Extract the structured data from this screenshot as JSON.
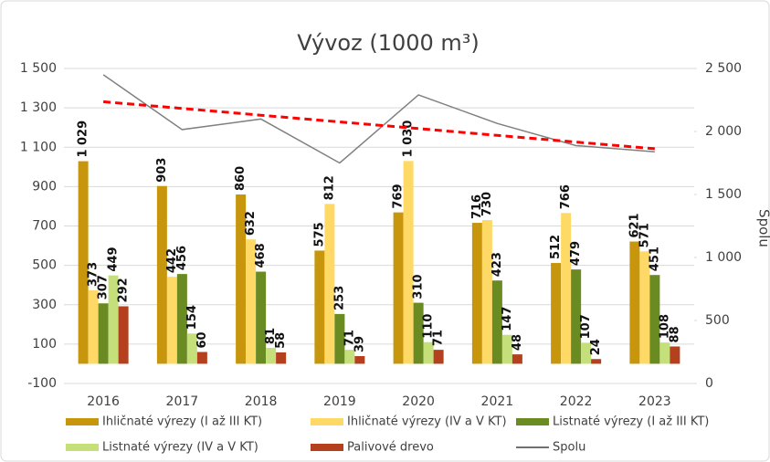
{
  "chart_data": {
    "type": "bar",
    "title": "Vývoz (1000 m³)",
    "y2label": "Spolu",
    "categories": [
      "2016",
      "2017",
      "2018",
      "2019",
      "2020",
      "2021",
      "2022",
      "2023"
    ],
    "series": [
      {
        "name": "Ihličnaté výrezy (I až III KT)",
        "color": "#c8960c",
        "values": [
          1029,
          903,
          860,
          575,
          769,
          716,
          512,
          621
        ],
        "value_labels": [
          "1 029",
          "903",
          "860",
          "575",
          "769",
          "716",
          "512",
          "621"
        ]
      },
      {
        "name": "Ihličnaté výrezy (IV a V KT)",
        "color": "#ffd966",
        "values": [
          373,
          442,
          632,
          812,
          1030,
          730,
          766,
          571
        ],
        "value_labels": [
          "373",
          "442",
          "632",
          "812",
          "1 030",
          "730",
          "766",
          "571"
        ]
      },
      {
        "name": "Listnaté výrezy (I až III KT)",
        "color": "#6a8a22",
        "values": [
          307,
          456,
          468,
          253,
          310,
          423,
          479,
          451
        ]
      },
      {
        "name": "Listnaté výrezy (IV a V KT)",
        "color": "#c5e07a",
        "values": [
          449,
          154,
          81,
          71,
          110,
          147,
          107,
          108
        ]
      },
      {
        "name": "Palivové drevo",
        "color": "#b5401e",
        "values": [
          292,
          60,
          58,
          39,
          71,
          48,
          24,
          88
        ]
      },
      {
        "name": "Spolu",
        "type": "line",
        "axis": "y2",
        "color": "#808080",
        "values": [
          2450,
          2015,
          2099,
          1750,
          2290,
          2064,
          1888,
          1839
        ]
      }
    ],
    "trendline": {
      "axis": "y2",
      "color": "#ff0000",
      "dashed": true,
      "values": [
        2236,
        2183,
        2129,
        2076,
        2023,
        1969,
        1916,
        1863
      ]
    },
    "ylim": [
      -100,
      1500
    ],
    "yticks": [
      -100,
      100,
      300,
      500,
      700,
      900,
      {
        "value": 1100,
        "label": "1 100"
      },
      {
        "value": 1300,
        "label": "1 300"
      },
      {
        "value": 1500,
        "label": "1 500"
      }
    ],
    "y2lim": [
      0,
      2500
    ],
    "y2ticks": [
      0,
      500,
      {
        "value": 1000,
        "label": "1 000"
      },
      {
        "value": 1500,
        "label": "1 500"
      },
      {
        "value": 2000,
        "label": "2 000"
      },
      {
        "value": 2500,
        "label": "2 500"
      }
    ],
    "grid": true
  }
}
